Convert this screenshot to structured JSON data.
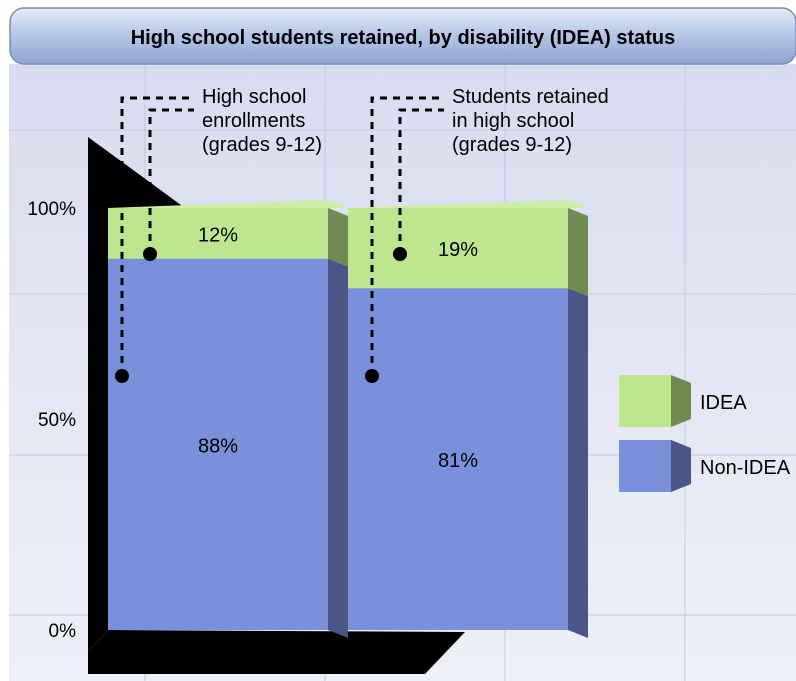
{
  "colors": {
    "idea_front": "#bde78f",
    "idea_side": "#6f8a52",
    "idea_top": "#cdeea6",
    "non_idea_front": "#7b90db",
    "non_idea_side": "#4a5685",
    "non_idea_top": "#8c9ee2",
    "header_fill": "#b3c5e6",
    "plot_bg": "#e9ebf6",
    "grid": "#c4c8e0",
    "wall": "#000000"
  },
  "chart_data": {
    "type": "bar",
    "stacked": true,
    "percent": true,
    "title": "High school students retained, by disability (IDEA) status",
    "categories": [
      "High school enrollments (grades 9-12)",
      "Students retained in high school (grades 9-12)"
    ],
    "category_callouts": [
      [
        "High school",
        "enrollments",
        "(grades 9-12)"
      ],
      [
        "Students retained",
        "in high school",
        "(grades 9-12)"
      ]
    ],
    "series": [
      {
        "name": "Non-IDEA",
        "values": [
          88,
          81
        ],
        "labels": [
          "88%",
          "81%"
        ]
      },
      {
        "name": "IDEA",
        "values": [
          12,
          19
        ],
        "labels": [
          "12%",
          "19%"
        ]
      }
    ],
    "ylim": [
      0,
      100
    ],
    "yticks": [
      0,
      50,
      100
    ],
    "ytick_labels": [
      "0%",
      "50%",
      "100%"
    ],
    "legend": [
      "IDEA",
      "Non-IDEA"
    ],
    "legend_position": "right",
    "grid": true,
    "three_d": true
  }
}
